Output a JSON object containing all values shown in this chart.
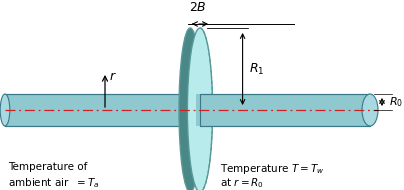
{
  "bg_color": "#ffffff",
  "fin_face_color": "#b8ecec",
  "fin_edge_color": "#5a9898",
  "fin_dark_color": "#4a8888",
  "rod_fill_color": "#90c8d0",
  "rod_top_color": "#c0e0e8",
  "rod_edge_color": "#3a7888",
  "rod_cap_color": "#a8d8e0",
  "centerline_color": "#cc2222",
  "arrow_color": "#000000",
  "label_2B": "$2B$",
  "label_R1": "$R_1$",
  "label_R0": "$R_0$",
  "label_r": "$r$",
  "label_temp_left1": "Temperature of",
  "label_temp_left2": "ambient air  $= T_a$",
  "label_temp_right1": "Temperature $T = T_w$",
  "label_temp_right2": "at $r = R_0$"
}
